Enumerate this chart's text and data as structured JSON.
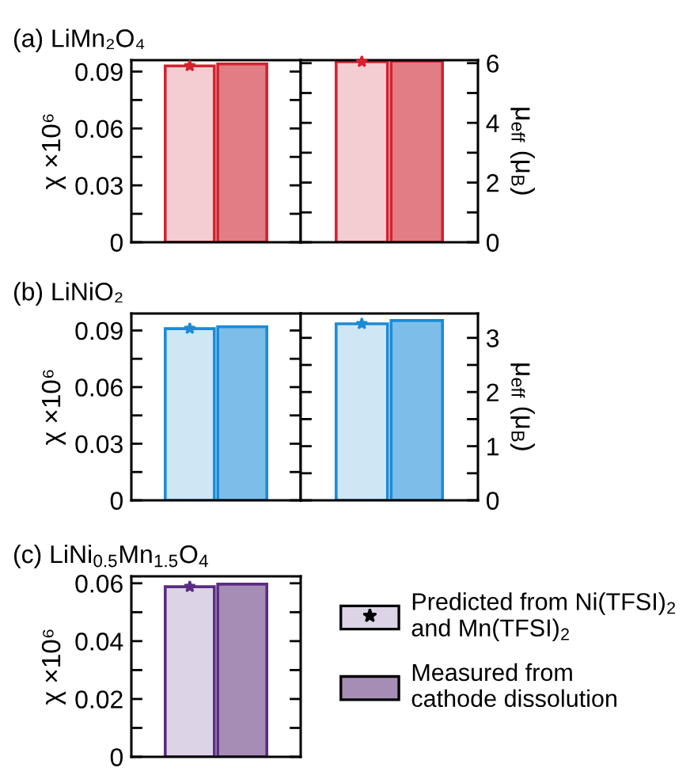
{
  "chart_data": [
    {
      "type": "bar",
      "title": "(a) LiMn₂O₄",
      "ylabel": "χ ×10⁶",
      "categories": [
        null
      ],
      "tick_labels": "y",
      "ylim": [
        0,
        0.096
      ],
      "yticks": [
        0,
        {
          "value": 0.015,
          "label": null
        },
        0.03,
        {
          "value": 0.045,
          "label": null
        },
        0.06,
        {
          "value": 0.075,
          "label": null
        },
        0.09
      ],
      "series": [
        {
          "color": "#f3cdd1",
          "values": [
            0.093
          ]
        },
        {
          "color": "#e17d85",
          "values": [
            0.094
          ]
        },
        {
          "type": "scatter",
          "color": "#d2232f",
          "marker": "star",
          "values": [
            0.093
          ]
        }
      ]
    },
    {
      "type": "bar",
      "ylabel": "μ$_{eff}$ (μ$_{B}$)",
      "categories": [
        null
      ],
      "tick_labels": "y",
      "ylim": [
        0,
        6.1
      ],
      "yticks": [
        0,
        {
          "value": 1,
          "label": null
        },
        2,
        {
          "value": 3,
          "label": null
        },
        4,
        {
          "value": 5,
          "label": null
        },
        6
      ],
      "series": [
        {
          "color": "#f3cdd1",
          "values": [
            6.05
          ]
        },
        {
          "color": "#e17d85",
          "values": [
            6.07
          ]
        },
        {
          "type": "scatter",
          "color": "#d2232f",
          "marker": "star",
          "values": [
            6.05
          ]
        }
      ]
    },
    {
      "type": "bar",
      "title": "(b) LiNiO₂",
      "ylabel": "χ ×10⁶",
      "categories": [
        null
      ],
      "tick_labels": "y",
      "ylim": [
        0,
        0.099
      ],
      "yticks": [
        0,
        {
          "value": 0.015,
          "label": null
        },
        0.03,
        {
          "value": 0.045,
          "label": null
        },
        0.06,
        {
          "value": 0.075,
          "label": null
        },
        0.09
      ],
      "series": [
        {
          "color": "#cfe6f5",
          "values": [
            0.091
          ]
        },
        {
          "color": "#7cbee9",
          "values": [
            0.092
          ]
        },
        {
          "type": "scatter",
          "color": "#1b8bd6",
          "marker": "star",
          "values": [
            0.091
          ]
        }
      ]
    },
    {
      "type": "bar",
      "ylabel": "μ$_{eff}$ (μ$_{B}$)",
      "categories": [
        null
      ],
      "tick_labels": "y",
      "ylim": [
        0,
        3.45
      ],
      "yticks": [
        0,
        {
          "value": 0.5,
          "label": null
        },
        1,
        {
          "value": 1.5,
          "label": null
        },
        2,
        {
          "value": 2.5,
          "label": null
        },
        3
      ],
      "series": [
        {
          "color": "#cfe6f5",
          "values": [
            3.26
          ]
        },
        {
          "color": "#7cbee9",
          "values": [
            3.32
          ]
        },
        {
          "type": "scatter",
          "color": "#1b8bd6",
          "marker": "star",
          "values": [
            3.26
          ]
        }
      ]
    },
    {
      "type": "bar",
      "title": "(c) LiNi$_{0.5}$Mn$_{1.5}$O$_{4}$",
      "ylabel": "χ ×10⁶",
      "categories": [
        null
      ],
      "tick_labels": "y",
      "ylim": [
        0,
        0.0624
      ],
      "legend": "right",
      "yticks": [
        0,
        {
          "value": 0.01,
          "label": null
        },
        0.02,
        {
          "value": 0.03,
          "label": null
        },
        0.04,
        {
          "value": 0.05,
          "label": null
        },
        0.06
      ],
      "series": [
        {
          "name": "Predicted from Ni(TFSI)$_{2}$\nand Mn(TFSI)$_{2}$",
          "color": "#ddd3e6",
          "values": [
            0.0588
          ]
        },
        {
          "name": "Measured from\ncathode dissolution",
          "color": "#a68db6",
          "values": [
            0.0597
          ]
        },
        {
          "type": "scatter",
          "color": "#5b2d83",
          "marker": "star",
          "values": [
            0.0588
          ]
        }
      ]
    }
  ]
}
